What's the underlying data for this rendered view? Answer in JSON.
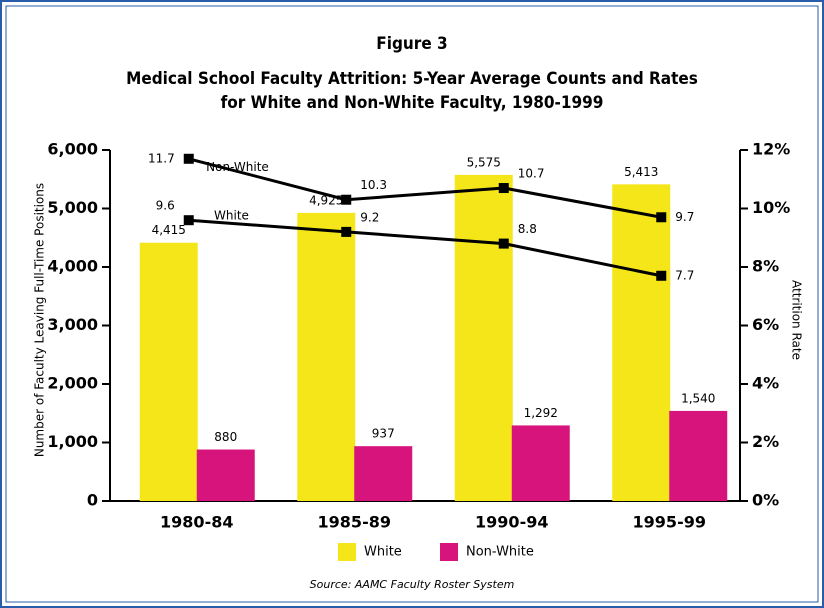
{
  "chart_data": {
    "type": "bar_line",
    "title": "Figure 3",
    "subtitle": [
      "Medical School Faculty Attrition: 5-Year Average Counts and Rates",
      "for White and Non-White Faculty, 1980-1999"
    ],
    "ylabel": "Number of Faculty Leaving Full-Time Positions",
    "y2label": "Attrition Rate",
    "source": "Source: AAMC Faculty Roster System",
    "categories": [
      "1980-84",
      "1985-89",
      "1990-94",
      "1995-99"
    ],
    "series": [
      {
        "name": "White",
        "type": "bar",
        "color": "#f5e61a",
        "values": [
          4415,
          4925,
          5575,
          5413
        ],
        "value_labels": [
          "4,415",
          "4,925",
          "5,575",
          "5,413"
        ]
      },
      {
        "name": "Non-White",
        "type": "bar",
        "color": "#d7137c",
        "values": [
          880,
          937,
          1292,
          1540
        ],
        "value_labels": [
          "880",
          "937",
          "1,292",
          "1,540"
        ]
      },
      {
        "name": "Non-White",
        "type": "line",
        "axis": "y2",
        "color": "#000000",
        "values": [
          11.7,
          10.3,
          10.7,
          9.7
        ]
      },
      {
        "name": "White",
        "type": "line",
        "axis": "y2",
        "color": "#000000",
        "values": [
          9.6,
          9.2,
          8.8,
          7.7
        ]
      }
    ],
    "ylim": [
      0,
      6000
    ],
    "yticks": [
      0,
      {
        "value": 1000,
        "label": "1,000"
      },
      {
        "value": 2000,
        "label": "2,000"
      },
      {
        "value": 3000,
        "label": "3,000"
      },
      {
        "value": 4000,
        "label": "4,000"
      },
      {
        "value": 5000,
        "label": "5,000"
      },
      {
        "value": 6000,
        "label": "6,000"
      }
    ],
    "y2lim": [
      0,
      12
    ],
    "y2ticks": [
      {
        "value": 0,
        "label": "0%"
      },
      {
        "value": 2,
        "label": "2%"
      },
      {
        "value": 4,
        "label": "4%"
      },
      {
        "value": 6,
        "label": "6%"
      },
      {
        "value": 8,
        "label": "8%"
      },
      {
        "value": 10,
        "label": "10%"
      },
      {
        "value": 12,
        "label": "12%"
      }
    ],
    "legend": "bottom"
  }
}
